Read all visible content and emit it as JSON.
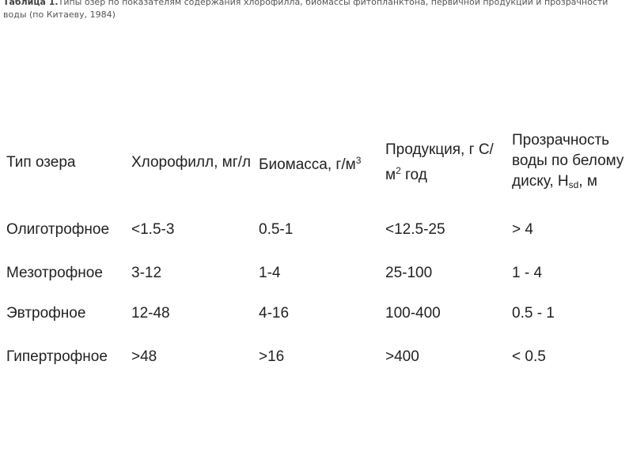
{
  "caption": {
    "label": "Таблица 1.",
    "text": "Типы озер по показателям содержания хлорофилла, биомассы фитопланктона, первичной продукции и прозрачности воды (по Китаеву, 1984)"
  },
  "table": {
    "headers": {
      "type": "Тип озера",
      "chlorophyll": "Хлорофилл, мг/л",
      "biomass_main": "Биомасса, г/м",
      "biomass_sup": "3",
      "production_pre": "Продукция, г С/м",
      "production_sup": "2",
      "production_post": " год",
      "transparency_pre": "Прозрачность воды по белому диску, H",
      "transparency_sub": "sd",
      "transparency_post": ", м"
    },
    "rows": [
      {
        "type": "Олиготрофное",
        "chlorophyll": "<1.5-3",
        "biomass": "0.5-1",
        "production": "<12.5-25",
        "transparency": "> 4"
      },
      {
        "type": "Мезотрофное",
        "chlorophyll": "3-12",
        "biomass": "1-4",
        "production": "25-100",
        "transparency": "1 - 4"
      },
      {
        "type": "Эвтрофное",
        "chlorophyll": "12-48",
        "biomass": "4-16",
        "production": "100-400",
        "transparency": "0.5 - 1"
      },
      {
        "type": "Гипертрофное",
        "chlorophyll": ">48",
        "biomass": ">16",
        "production": ">400",
        "transparency": "< 0.5"
      }
    ]
  }
}
